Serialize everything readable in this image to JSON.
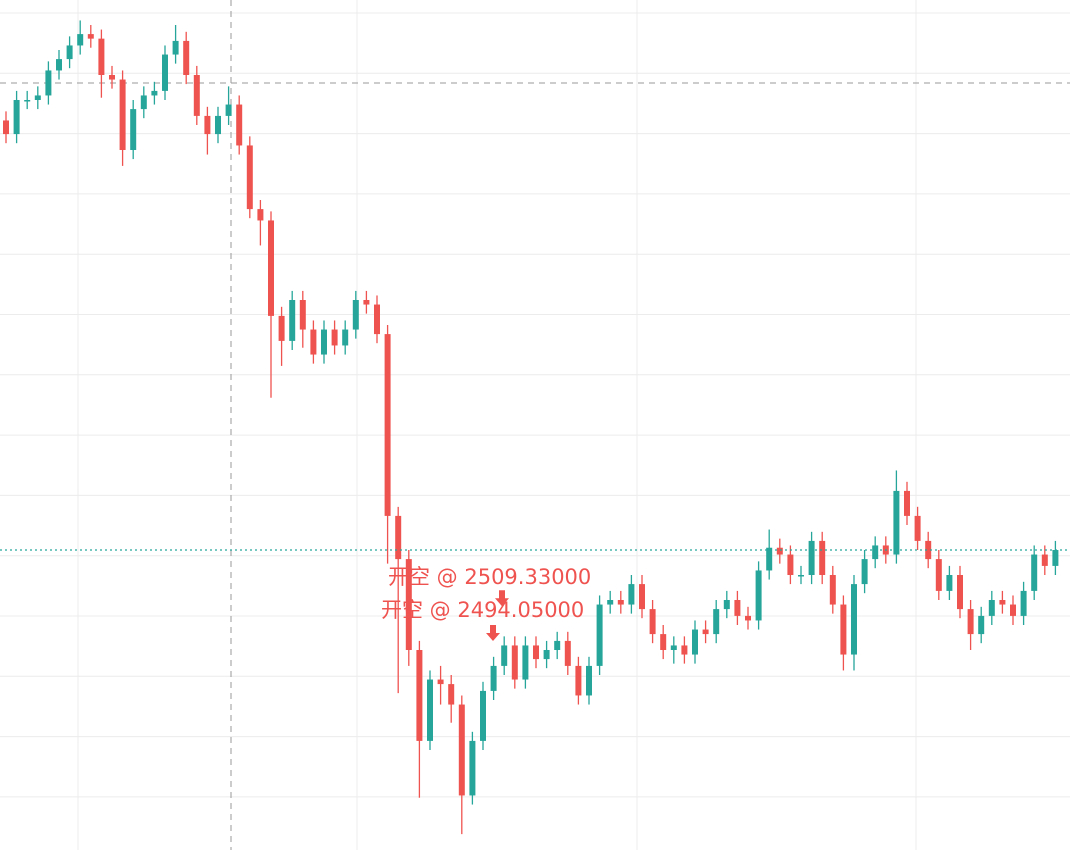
{
  "chart_data": {
    "type": "candlestick",
    "ylim": [
      2399,
      2773
    ],
    "grid": true,
    "up_color": "#26a69a",
    "down_color": "#ef5350",
    "open": [
      2720,
      2714,
      2729,
      2729,
      2731,
      2742,
      2747,
      2753,
      2758,
      2756,
      2740,
      2738,
      2707,
      2725,
      2731,
      2733,
      2749,
      2755,
      2740,
      2722,
      2714,
      2722,
      2727,
      2709,
      2681,
      2676,
      2634,
      2623,
      2641,
      2628,
      2617,
      2628,
      2621,
      2628,
      2641,
      2639,
      2626,
      2546,
      2527,
      2487,
      2447,
      2474,
      2472,
      2463,
      2423,
      2447,
      2469,
      2480,
      2489,
      2474,
      2489,
      2483,
      2487,
      2491,
      2480,
      2467,
      2480,
      2507,
      2509,
      2507,
      2516,
      2505,
      2494,
      2487,
      2489,
      2485,
      2496,
      2494,
      2505,
      2509,
      2502,
      2500,
      2522,
      2532,
      2529,
      2520,
      2520,
      2535,
      2520,
      2507,
      2485,
      2516,
      2527,
      2533,
      2529,
      2557,
      2546,
      2535,
      2527,
      2513,
      2520,
      2505,
      2494,
      2502,
      2509,
      2507,
      2502,
      2513,
      2529,
      2524
    ],
    "high": [
      2724,
      2733,
      2733,
      2735,
      2746,
      2751,
      2757,
      2764,
      2762,
      2760,
      2744,
      2742,
      2729,
      2735,
      2737,
      2753,
      2762,
      2759,
      2744,
      2726,
      2726,
      2735,
      2731,
      2713,
      2685,
      2680,
      2638,
      2645,
      2645,
      2632,
      2632,
      2632,
      2632,
      2645,
      2645,
      2643,
      2630,
      2550,
      2531,
      2491,
      2478,
      2480,
      2476,
      2467,
      2451,
      2473,
      2484,
      2493,
      2493,
      2493,
      2493,
      2491,
      2495,
      2495,
      2484,
      2484,
      2511,
      2513,
      2513,
      2520,
      2520,
      2509,
      2498,
      2493,
      2493,
      2500,
      2500,
      2509,
      2513,
      2513,
      2506,
      2526,
      2540,
      2536,
      2533,
      2524,
      2539,
      2539,
      2524,
      2511,
      2520,
      2531,
      2537,
      2537,
      2566,
      2561,
      2550,
      2539,
      2531,
      2524,
      2524,
      2509,
      2506,
      2513,
      2513,
      2511,
      2517,
      2533,
      2533,
      2535
    ],
    "low": [
      2710,
      2710,
      2725,
      2725,
      2727,
      2738,
      2743,
      2749,
      2752,
      2730,
      2734,
      2700,
      2703,
      2721,
      2727,
      2729,
      2745,
      2736,
      2718,
      2705,
      2710,
      2718,
      2705,
      2677,
      2665,
      2598,
      2612,
      2619,
      2620,
      2613,
      2613,
      2617,
      2617,
      2624,
      2635,
      2622,
      2525,
      2468,
      2480,
      2422,
      2443,
      2463,
      2455,
      2406,
      2419,
      2443,
      2465,
      2476,
      2470,
      2470,
      2479,
      2479,
      2483,
      2476,
      2463,
      2463,
      2476,
      2503,
      2503,
      2503,
      2501,
      2490,
      2483,
      2481,
      2481,
      2481,
      2490,
      2490,
      2501,
      2498,
      2496,
      2496,
      2518,
      2525,
      2516,
      2516,
      2516,
      2516,
      2503,
      2478,
      2478,
      2512,
      2523,
      2525,
      2525,
      2542,
      2531,
      2523,
      2509,
      2509,
      2501,
      2487,
      2490,
      2498,
      2503,
      2498,
      2498,
      2509,
      2520,
      2520
    ],
    "close": [
      2714,
      2729,
      2729,
      2731,
      2742,
      2747,
      2753,
      2758,
      2756,
      2740,
      2738,
      2707,
      2725,
      2731,
      2733,
      2749,
      2755,
      2740,
      2722,
      2714,
      2722,
      2727,
      2709,
      2681,
      2676,
      2634,
      2623,
      2641,
      2628,
      2617,
      2628,
      2621,
      2628,
      2641,
      2639,
      2626,
      2546,
      2527,
      2487,
      2447,
      2474,
      2472,
      2463,
      2423,
      2447,
      2469,
      2480,
      2489,
      2474,
      2489,
      2483,
      2487,
      2491,
      2480,
      2467,
      2480,
      2507,
      2509,
      2507,
      2516,
      2505,
      2494,
      2487,
      2489,
      2485,
      2496,
      2494,
      2505,
      2509,
      2502,
      2500,
      2522,
      2532,
      2529,
      2520,
      2520,
      2535,
      2520,
      2507,
      2485,
      2516,
      2527,
      2533,
      2529,
      2557,
      2546,
      2535,
      2527,
      2513,
      2520,
      2505,
      2494,
      2502,
      2509,
      2507,
      2502,
      2513,
      2529,
      2524,
      2531
    ],
    "annotations": [
      {
        "text": "开空 @ 2509.33000",
        "value": 2509.33
      },
      {
        "text": "开空 @ 2494.05000",
        "value": 2494.05
      }
    ]
  }
}
